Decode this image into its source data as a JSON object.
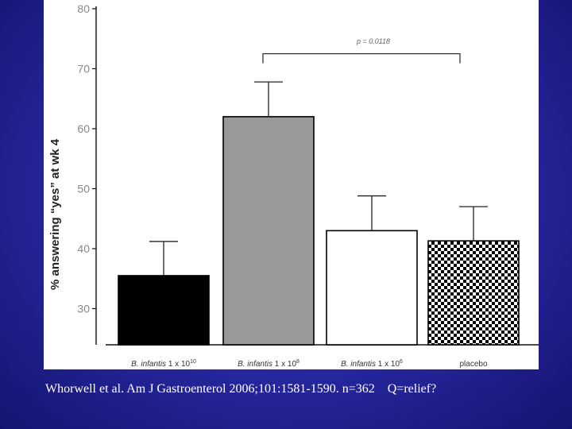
{
  "slide": {
    "citation": "Whorwell et al. Am J Gastroenterol 2006;101:1581-1590. n=362    Q=relief?"
  },
  "colors": {
    "background": "#2a2aa8",
    "bar_black": "#000000",
    "bar_grey": "#999999",
    "bar_white": "#ffffff"
  },
  "chart_data": {
    "type": "bar",
    "title": "",
    "xlabel": "",
    "ylabel": "% answering “yes” at wk 4",
    "ylim": [
      24,
      80
    ],
    "yticks": [
      30,
      40,
      50,
      60,
      70,
      80
    ],
    "categories": [
      "B. infantis 1 x 10¹⁰",
      "B. infantis 1 x 10⁸",
      "B. infantis 1 x 10⁶",
      "placebo"
    ],
    "category_parts": [
      {
        "name": "B. infantis",
        "rest": " 1 x 10",
        "exp": "10"
      },
      {
        "name": "B. infantis",
        "rest": " 1 x 10",
        "exp": "8"
      },
      {
        "name": "B. infantis",
        "rest": " 1 x 10",
        "exp": "6"
      },
      {
        "name": "",
        "rest": "placebo",
        "exp": ""
      }
    ],
    "values": [
      35.5,
      62,
      43,
      41.3
    ],
    "error_upper": [
      41.2,
      67.8,
      48.8,
      47
    ],
    "bar_fills": [
      "black",
      "grey",
      "white",
      "checkered"
    ],
    "annotation": {
      "text": "p = 0.0118",
      "from_category": 1,
      "to_category": 3,
      "bracket_y": 72.5
    },
    "grid": false,
    "legend": "none"
  }
}
